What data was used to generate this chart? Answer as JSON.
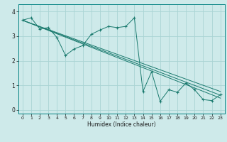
{
  "title": "",
  "xlabel": "Humidex (Indice chaleur)",
  "ylabel": "",
  "bg_color": "#ceeaea",
  "grid_color": "#aad4d4",
  "line_color": "#1a7a6e",
  "xlim": [
    -0.5,
    23.5
  ],
  "ylim": [
    -0.15,
    4.3
  ],
  "xticks": [
    0,
    1,
    2,
    3,
    4,
    5,
    6,
    7,
    8,
    9,
    10,
    11,
    12,
    13,
    14,
    15,
    16,
    17,
    18,
    19,
    20,
    21,
    22,
    23
  ],
  "yticks": [
    0,
    1,
    2,
    3,
    4
  ],
  "series1_x": [
    0,
    1,
    2,
    3,
    4,
    5,
    6,
    7,
    8,
    9,
    10,
    11,
    12,
    13,
    14,
    15,
    16,
    17,
    18,
    19,
    20,
    21,
    22,
    23
  ],
  "series1_y": [
    3.65,
    3.75,
    3.3,
    3.35,
    2.95,
    2.22,
    2.48,
    2.62,
    3.08,
    3.25,
    3.4,
    3.35,
    3.4,
    3.75,
    0.75,
    1.55,
    0.35,
    0.82,
    0.72,
    1.1,
    0.82,
    0.42,
    0.38,
    0.62
  ],
  "series2_x": [
    0,
    23
  ],
  "series2_y": [
    3.65,
    0.6
  ],
  "series3_x": [
    0,
    23
  ],
  "series3_y": [
    3.65,
    0.75
  ],
  "series4_x": [
    0,
    23
  ],
  "series4_y": [
    3.65,
    0.48
  ]
}
